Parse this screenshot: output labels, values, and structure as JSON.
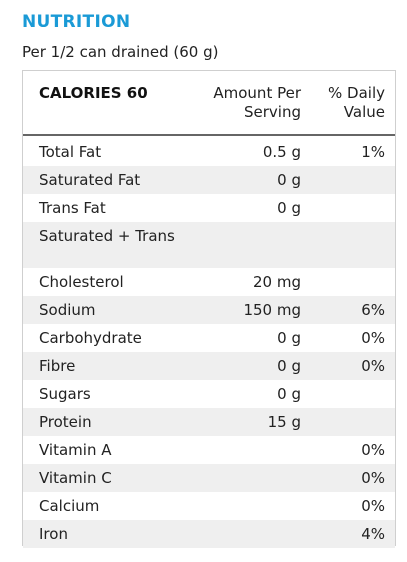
{
  "title": "NUTRITION",
  "serving_size": "Per 1/2 can drained (60 g)",
  "header": {
    "calories": "CALORIES 60",
    "amount_line1": "Amount Per",
    "amount_line2": "Serving",
    "daily_line1": "% Daily",
    "daily_line2": "Value"
  },
  "nutrients": [
    {
      "name": "Total Fat",
      "amount": "0.5 g",
      "daily": "1%"
    },
    {
      "name": "Saturated Fat",
      "amount": "0 g",
      "daily": ""
    },
    {
      "name": "Trans Fat",
      "amount": "0 g",
      "daily": ""
    },
    {
      "name": "Saturated + Trans",
      "amount": "",
      "daily": ""
    },
    {
      "name": "Cholesterol",
      "amount": "20 mg",
      "daily": ""
    },
    {
      "name": "Sodium",
      "amount": "150 mg",
      "daily": "6%"
    },
    {
      "name": "Carbohydrate",
      "amount": "0 g",
      "daily": "0%"
    },
    {
      "name": "Fibre",
      "amount": "0 g",
      "daily": "0%"
    },
    {
      "name": "Sugars",
      "amount": "0 g",
      "daily": ""
    },
    {
      "name": "Protein",
      "amount": "15 g",
      "daily": ""
    },
    {
      "name": "Vitamin A",
      "amount": "",
      "daily": "0%"
    },
    {
      "name": "Vitamin C",
      "amount": "",
      "daily": "0%"
    },
    {
      "name": "Calcium",
      "amount": "",
      "daily": "0%"
    },
    {
      "name": "Iron",
      "amount": "",
      "daily": "4%"
    }
  ],
  "colors": {
    "title": "#1a9ad6",
    "row_shade": "#efefef"
  }
}
